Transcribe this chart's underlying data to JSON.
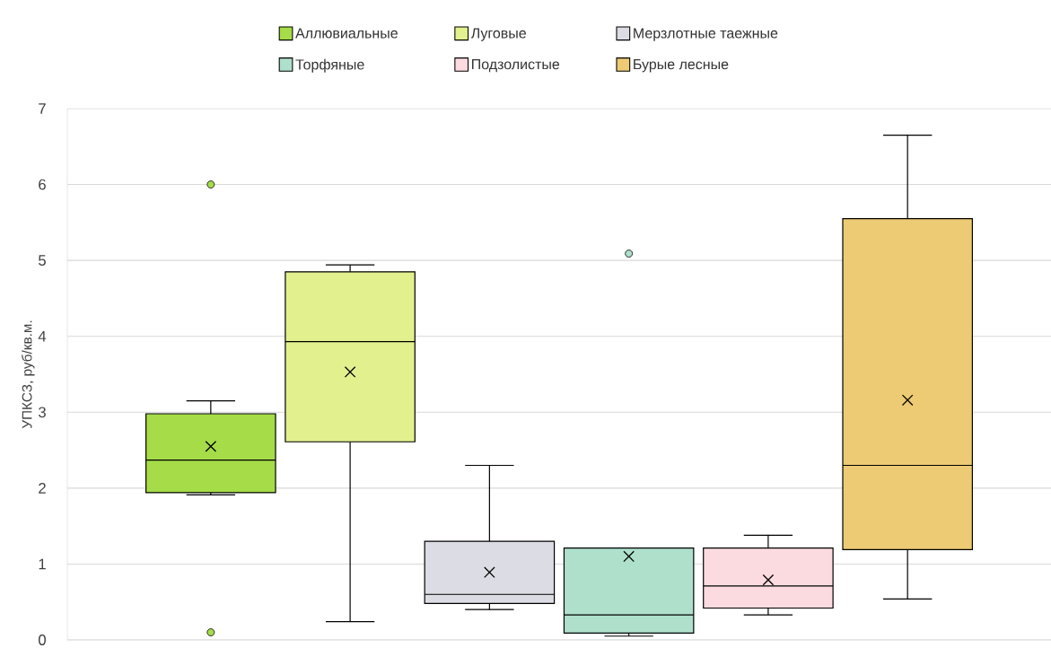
{
  "chart_data": {
    "type": "box",
    "ylabel": "УПКСЗ, руб/кв.м.",
    "categories": [
      null
    ],
    "ylim": [
      0,
      7
    ],
    "yticks": [
      0,
      1,
      2,
      3,
      4,
      5,
      6,
      7
    ],
    "grid": "y",
    "legend": "top",
    "tick_labels": "y",
    "series": [
      {
        "name": "Аллювиальные",
        "color": "#a5dc48",
        "boxes": [
          {
            "low": 1.91,
            "q1": 1.94,
            "median": 2.37,
            "q3": 2.98,
            "high": 3.15,
            "mean": 2.55,
            "outliers": [
              6.0,
              0.1
            ]
          }
        ]
      },
      {
        "name": "Луговые",
        "color": "#e2f08e",
        "boxes": [
          {
            "low": 0.24,
            "q1": 2.61,
            "median": 3.93,
            "q3": 4.85,
            "high": 4.94,
            "mean": 3.53
          }
        ]
      },
      {
        "name": "Мерзлотные таежные",
        "color": "#dcdde4",
        "boxes": [
          {
            "low": 0.4,
            "q1": 0.48,
            "median": 0.6,
            "q3": 1.3,
            "high": 2.3,
            "mean": 0.89
          }
        ]
      },
      {
        "name": "Торфяные",
        "color": "#aee0cb",
        "boxes": [
          {
            "low": 0.05,
            "q1": 0.09,
            "median": 0.33,
            "q3": 1.21,
            "high": 1.21,
            "mean": 1.1,
            "outliers": [
              5.09
            ]
          }
        ]
      },
      {
        "name": "Подзолистые",
        "color": "#fbdbe0",
        "boxes": [
          {
            "low": 0.33,
            "q1": 0.42,
            "median": 0.71,
            "q3": 1.21,
            "high": 1.38,
            "mean": 0.79
          }
        ]
      },
      {
        "name": "Бурые лесные",
        "color": "#edca74",
        "boxes": [
          {
            "low": 0.54,
            "q1": 1.19,
            "median": 2.3,
            "q3": 5.55,
            "high": 6.65,
            "mean": 3.16
          }
        ]
      }
    ]
  }
}
